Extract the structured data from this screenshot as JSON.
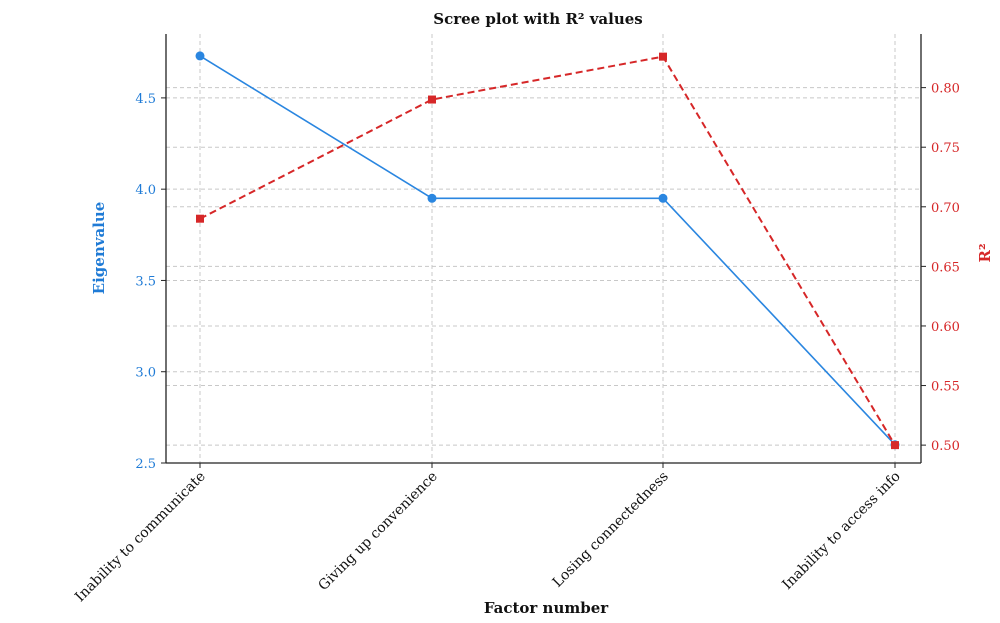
{
  "chart_data": {
    "type": "line",
    "title": "Scree plot with R² values",
    "xlabel": "Factor number",
    "categories": [
      "Inability to communicate",
      "Giving up convenience",
      "Losing connectedness",
      "Inability to access info"
    ],
    "grid": true,
    "y_left": {
      "label": "Eigenvalue",
      "range": [
        2.5,
        4.85
      ],
      "ticks": [
        "2.5",
        "3.0",
        "3.5",
        "4.0",
        "4.5"
      ],
      "tick_values": [
        2.5,
        3.0,
        3.5,
        4.0,
        4.5
      ],
      "color": "#1f7bd6"
    },
    "y_right": {
      "label": "R²",
      "range": [
        0.485,
        0.845
      ],
      "ticks": [
        "0.50",
        "0.55",
        "0.60",
        "0.65",
        "0.70",
        "0.75",
        "0.80"
      ],
      "tick_values": [
        0.5,
        0.55,
        0.6,
        0.65,
        0.7,
        0.75,
        0.8
      ],
      "color": "#d62728"
    },
    "series": [
      {
        "axis": "left",
        "values": [
          4.73,
          3.95,
          3.95,
          2.6
        ],
        "color": "#2a86e0",
        "line_style": "solid",
        "marker": "circle"
      },
      {
        "axis": "right",
        "values": [
          0.69,
          0.79,
          0.826,
          0.5
        ],
        "color": "#d62728",
        "line_style": "dashed",
        "marker": "square"
      }
    ]
  }
}
